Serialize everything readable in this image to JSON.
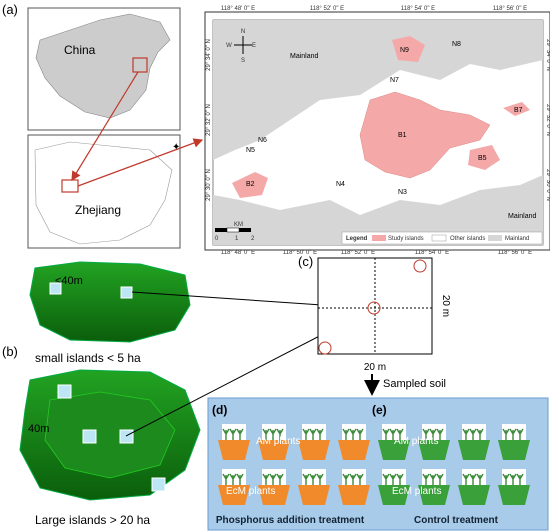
{
  "panel_a": {
    "label": "(a)",
    "china": "China",
    "zhejiang": "Zhejiang",
    "top_ticks": [
      "118° 48' 0\" E",
      "118° 52' 0\" E",
      "118° 54' 0\" E",
      "118° 56' 0\" E"
    ],
    "bottom_ticks": [
      "118° 48' 0\" E",
      "118° 50' 0\" E",
      "118° 52' 0\" E",
      "118° 54' 0\" E",
      "118° 56' 0\" E"
    ],
    "left_ticks": [
      "29° 34' 0\" N",
      "29° 32' 0\" N",
      "29° 30' 0\" N"
    ],
    "right_ticks": [
      "29° 34' 0\" N",
      "29° 32' 0\" N",
      "29° 30' 0\" N"
    ],
    "places": [
      "Mainland",
      "N9",
      "N8",
      "N7",
      "B7",
      "B1",
      "N6",
      "N5",
      "B5",
      "B2",
      "N4",
      "N3",
      "Mainland"
    ],
    "compass": [
      "N",
      "S",
      "W",
      "E"
    ],
    "scale": [
      "0",
      "1",
      "2",
      "KM"
    ],
    "legend": {
      "title": "Legend",
      "items": [
        "Study islands",
        "Other islands",
        "Mainland"
      ]
    }
  },
  "panel_b": {
    "label": "(b)",
    "small_depth": "<40m",
    "small_caption": "small islands < 5 ha",
    "large_depth": "40m",
    "large_caption": "Large islands > 20 ha"
  },
  "panel_c": {
    "label": "(c)",
    "side_right": "20 m",
    "side_bottom": "20 m",
    "arrow_label": "Sampled soil"
  },
  "panel_d": {
    "label": "(d)",
    "am": "AM plants",
    "ecm": "EcM plants",
    "caption": "Phosphorus addition treatment"
  },
  "panel_e": {
    "label": "(e)",
    "am": "AM plants",
    "ecm": "EcM plants",
    "caption": "Control treatment"
  }
}
